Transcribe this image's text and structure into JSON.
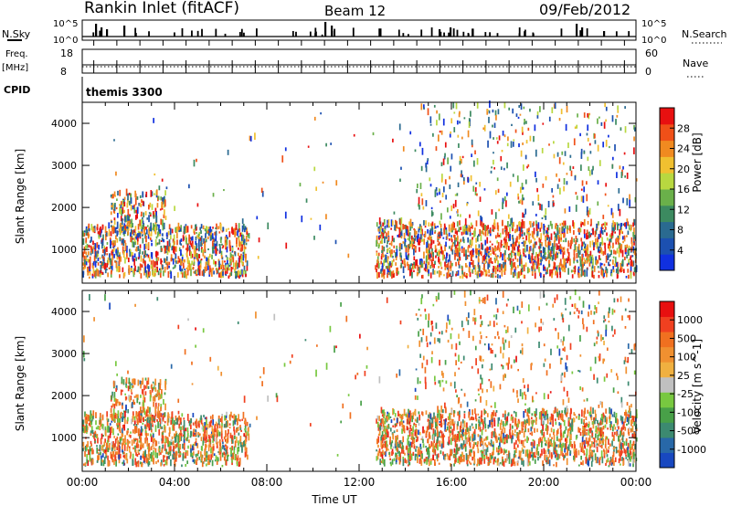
{
  "header": {
    "station": "Rankin Inlet (fitACF)",
    "beam": "Beam 12",
    "date": "09/Feb/2012"
  },
  "strips": {
    "nsky_label": "N.Sky",
    "nsearch_label": "N.Search",
    "nsky_ticks": [
      "10^5",
      "10^0"
    ],
    "nsearch_ticks": [
      "10^5",
      "10^0"
    ],
    "freq_label": "Freq.",
    "freq_unit": "[MHz]",
    "freq_ticks": [
      "18",
      "8"
    ],
    "nave_label": "Nave",
    "nave_ticks": [
      "60",
      "0"
    ],
    "cpid_label": "CPID",
    "cpid_value": "themis 3300"
  },
  "chart_data": [
    {
      "type": "heatmap",
      "name": "power",
      "ylabel": "Slant Range [km]",
      "yticks": [
        "1000",
        "2000",
        "3000",
        "4000"
      ],
      "ylim": [
        200,
        4500
      ],
      "x_ticks": [
        "00:00",
        "04:00",
        "08:00",
        "12:00",
        "16:00",
        "20:00",
        "00:00"
      ],
      "colorbar": {
        "label": "Power [dB]",
        "ticks": [
          "4",
          "8",
          "12",
          "16",
          "20",
          "24",
          "28"
        ],
        "colors": [
          "#1030e0",
          "#1c50b0",
          "#2a6a90",
          "#3c8a60",
          "#6ab04a",
          "#b8d840",
          "#f0c030",
          "#f08a20",
          "#f05018",
          "#e81010"
        ]
      }
    },
    {
      "type": "heatmap",
      "name": "velocity",
      "ylabel": "Slant Range [km]",
      "yticks": [
        "1000",
        "2000",
        "3000",
        "4000"
      ],
      "ylim": [
        200,
        4500
      ],
      "xlabel": "Time UT",
      "x_ticks": [
        "00:00",
        "04:00",
        "08:00",
        "12:00",
        "16:00",
        "20:00",
        "00:00"
      ],
      "colorbar": {
        "label": "Velocity [m s^-1]",
        "ticks": [
          "1000",
          "500",
          "100",
          "25",
          "-25",
          "-100",
          "-500",
          "-1000"
        ],
        "colors": [
          "#1848c0",
          "#2868a8",
          "#3c8a70",
          "#48a048",
          "#78c840",
          "#c0c0c0",
          "#f0b040",
          "#f09030",
          "#f07020",
          "#f04020",
          "#e81010"
        ]
      }
    }
  ]
}
